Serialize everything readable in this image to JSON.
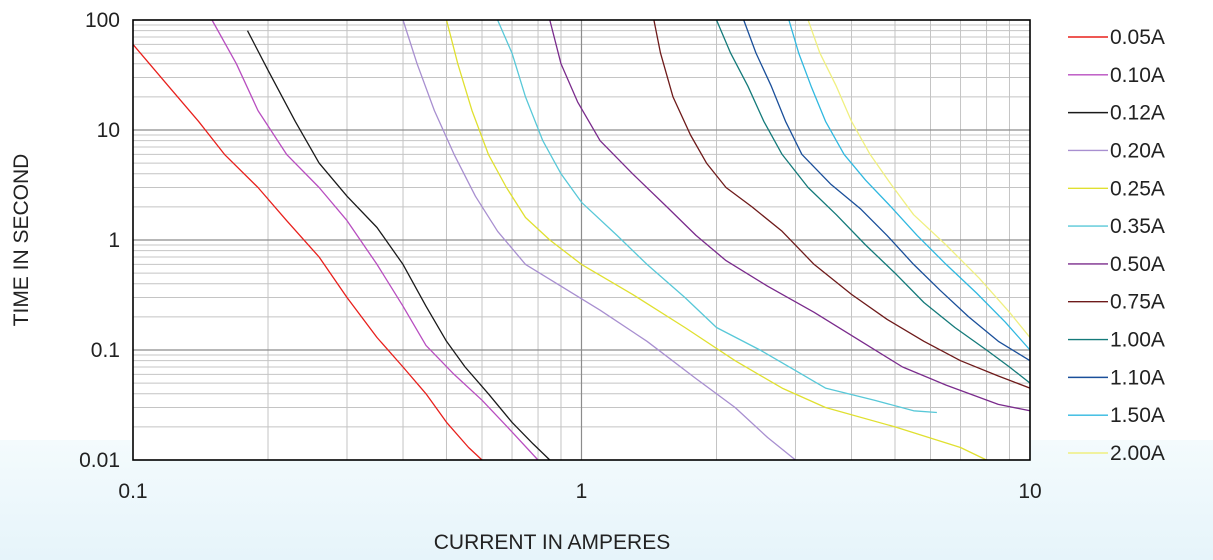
{
  "chart_data": {
    "type": "line",
    "title": "",
    "xlabel": "CURRENT IN AMPERES",
    "ylabel": "TIME IN SECOND",
    "xscale": "log",
    "yscale": "log",
    "xlim": [
      0.1,
      10
    ],
    "ylim": [
      0.01,
      100
    ],
    "grid": true,
    "legend_position": "right",
    "x_ticks": [
      "0.1",
      "1",
      "10"
    ],
    "y_ticks": [
      "100",
      "10",
      "1",
      "0.1",
      "0.01"
    ],
    "series": [
      {
        "name": "0.05A",
        "color": "#e8201c",
        "points": [
          [
            0.1,
            60
          ],
          [
            0.12,
            25
          ],
          [
            0.14,
            12
          ],
          [
            0.16,
            6
          ],
          [
            0.19,
            3
          ],
          [
            0.22,
            1.5
          ],
          [
            0.26,
            0.7
          ],
          [
            0.3,
            0.3
          ],
          [
            0.35,
            0.13
          ],
          [
            0.4,
            0.07
          ],
          [
            0.45,
            0.04
          ],
          [
            0.5,
            0.022
          ],
          [
            0.56,
            0.013
          ],
          [
            0.6,
            0.01
          ]
        ]
      },
      {
        "name": "0.10A",
        "color": "#b84ec0",
        "points": [
          [
            0.15,
            100
          ],
          [
            0.17,
            40
          ],
          [
            0.19,
            15
          ],
          [
            0.22,
            6
          ],
          [
            0.26,
            3
          ],
          [
            0.3,
            1.5
          ],
          [
            0.35,
            0.6
          ],
          [
            0.4,
            0.25
          ],
          [
            0.45,
            0.11
          ],
          [
            0.52,
            0.06
          ],
          [
            0.6,
            0.035
          ],
          [
            0.7,
            0.018
          ],
          [
            0.8,
            0.01
          ]
        ]
      },
      {
        "name": "0.12A",
        "color": "#1a1a1a",
        "points": [
          [
            0.18,
            80
          ],
          [
            0.2,
            35
          ],
          [
            0.23,
            12
          ],
          [
            0.26,
            5
          ],
          [
            0.3,
            2.5
          ],
          [
            0.35,
            1.3
          ],
          [
            0.4,
            0.6
          ],
          [
            0.45,
            0.25
          ],
          [
            0.5,
            0.12
          ],
          [
            0.55,
            0.07
          ],
          [
            0.62,
            0.04
          ],
          [
            0.7,
            0.022
          ],
          [
            0.78,
            0.014
          ],
          [
            0.85,
            0.01
          ]
        ]
      },
      {
        "name": "0.20A",
        "color": "#a88fd0",
        "points": [
          [
            0.4,
            100
          ],
          [
            0.43,
            40
          ],
          [
            0.47,
            15
          ],
          [
            0.52,
            6
          ],
          [
            0.58,
            2.5
          ],
          [
            0.65,
            1.2
          ],
          [
            0.75,
            0.6
          ],
          [
            0.9,
            0.38
          ],
          [
            1.1,
            0.23
          ],
          [
            1.4,
            0.12
          ],
          [
            1.8,
            0.055
          ],
          [
            2.2,
            0.03
          ],
          [
            2.6,
            0.016
          ],
          [
            3.0,
            0.01
          ]
        ]
      },
      {
        "name": "0.25A",
        "color": "#e0e030",
        "points": [
          [
            0.5,
            100
          ],
          [
            0.53,
            40
          ],
          [
            0.57,
            15
          ],
          [
            0.62,
            6
          ],
          [
            0.68,
            3
          ],
          [
            0.75,
            1.6
          ],
          [
            0.85,
            1.0
          ],
          [
            1.0,
            0.6
          ],
          [
            1.3,
            0.32
          ],
          [
            1.7,
            0.16
          ],
          [
            2.2,
            0.08
          ],
          [
            2.8,
            0.045
          ],
          [
            3.5,
            0.03
          ],
          [
            5,
            0.02
          ],
          [
            7,
            0.013
          ],
          [
            8,
            0.01
          ]
        ]
      },
      {
        "name": "0.35A",
        "color": "#58c8d8",
        "points": [
          [
            0.65,
            100
          ],
          [
            0.7,
            50
          ],
          [
            0.75,
            20
          ],
          [
            0.82,
            8
          ],
          [
            0.9,
            4
          ],
          [
            1.0,
            2.2
          ],
          [
            1.2,
            1.1
          ],
          [
            1.4,
            0.6
          ],
          [
            1.7,
            0.3
          ],
          [
            2.0,
            0.16
          ],
          [
            2.5,
            0.1
          ],
          [
            3.0,
            0.065
          ],
          [
            3.5,
            0.045
          ],
          [
            4.5,
            0.035
          ],
          [
            5.5,
            0.028
          ],
          [
            6.2,
            0.027
          ]
        ]
      },
      {
        "name": "0.50A",
        "color": "#7a2b8c",
        "points": [
          [
            0.85,
            100
          ],
          [
            0.9,
            40
          ],
          [
            0.98,
            18
          ],
          [
            1.1,
            8
          ],
          [
            1.3,
            4
          ],
          [
            1.55,
            2
          ],
          [
            1.8,
            1.1
          ],
          [
            2.1,
            0.65
          ],
          [
            2.6,
            0.38
          ],
          [
            3.3,
            0.22
          ],
          [
            4.2,
            0.12
          ],
          [
            5.2,
            0.07
          ],
          [
            6.5,
            0.048
          ],
          [
            8.5,
            0.032
          ],
          [
            10,
            0.028
          ]
        ]
      },
      {
        "name": "0.75A",
        "color": "#6e1a1a",
        "points": [
          [
            1.45,
            100
          ],
          [
            1.5,
            50
          ],
          [
            1.6,
            20
          ],
          [
            1.75,
            9
          ],
          [
            1.9,
            5
          ],
          [
            2.1,
            3
          ],
          [
            2.4,
            2
          ],
          [
            2.8,
            1.2
          ],
          [
            3.3,
            0.6
          ],
          [
            4,
            0.32
          ],
          [
            4.8,
            0.19
          ],
          [
            5.8,
            0.12
          ],
          [
            7,
            0.08
          ],
          [
            8.5,
            0.058
          ],
          [
            10,
            0.045
          ]
        ]
      },
      {
        "name": "1.00A",
        "color": "#147a7a",
        "points": [
          [
            2.0,
            100
          ],
          [
            2.15,
            50
          ],
          [
            2.35,
            25
          ],
          [
            2.55,
            12
          ],
          [
            2.8,
            6
          ],
          [
            3.2,
            3
          ],
          [
            3.7,
            1.7
          ],
          [
            4.3,
            0.9
          ],
          [
            5,
            0.5
          ],
          [
            5.8,
            0.27
          ],
          [
            6.8,
            0.16
          ],
          [
            8,
            0.1
          ],
          [
            9,
            0.07
          ],
          [
            10,
            0.05
          ]
        ]
      },
      {
        "name": "1.10A",
        "color": "#1a4f9a",
        "points": [
          [
            2.3,
            100
          ],
          [
            2.45,
            50
          ],
          [
            2.65,
            25
          ],
          [
            2.85,
            12
          ],
          [
            3.1,
            6
          ],
          [
            3.6,
            3.2
          ],
          [
            4.2,
            1.9
          ],
          [
            4.8,
            1.1
          ],
          [
            5.5,
            0.6
          ],
          [
            6.3,
            0.35
          ],
          [
            7.3,
            0.2
          ],
          [
            8.5,
            0.12
          ],
          [
            10,
            0.08
          ]
        ]
      },
      {
        "name": "1.50A",
        "color": "#30b8e0",
        "points": [
          [
            2.9,
            100
          ],
          [
            3.05,
            50
          ],
          [
            3.25,
            25
          ],
          [
            3.5,
            12
          ],
          [
            3.85,
            6
          ],
          [
            4.3,
            3.5
          ],
          [
            4.9,
            2
          ],
          [
            5.6,
            1.1
          ],
          [
            6.5,
            0.6
          ],
          [
            7.6,
            0.33
          ],
          [
            8.8,
            0.18
          ],
          [
            10,
            0.1
          ]
        ]
      },
      {
        "name": "2.00A",
        "color": "#f0f080",
        "points": [
          [
            3.2,
            100
          ],
          [
            3.4,
            50
          ],
          [
            3.7,
            25
          ],
          [
            4,
            12
          ],
          [
            4.4,
            6
          ],
          [
            4.9,
            3.2
          ],
          [
            5.5,
            1.7
          ],
          [
            6.5,
            0.9
          ],
          [
            7.7,
            0.45
          ],
          [
            9,
            0.22
          ],
          [
            10,
            0.13
          ]
        ]
      }
    ]
  }
}
